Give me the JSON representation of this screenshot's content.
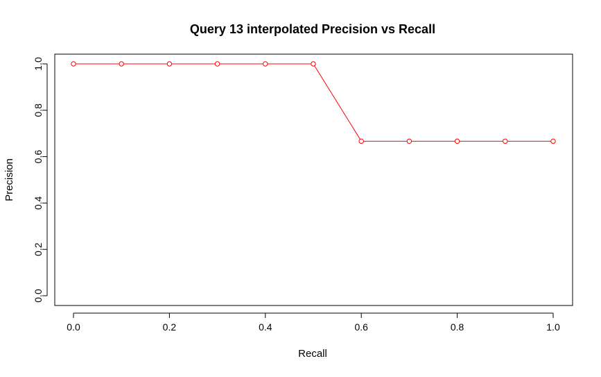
{
  "chart_data": {
    "type": "line",
    "title": "Query 13 interpolated Precision vs Recall",
    "xlabel": "Recall",
    "ylabel": "Precision",
    "x": [
      0.0,
      0.1,
      0.2,
      0.3,
      0.4,
      0.5,
      0.6,
      0.7,
      0.8,
      0.9,
      1.0
    ],
    "series": [
      {
        "values": [
          1.0,
          1.0,
          1.0,
          1.0,
          1.0,
          1.0,
          0.6667,
          0.6667,
          0.6667,
          0.6667,
          0.6667
        ],
        "color": "#ff0000",
        "marker": "open-circle"
      }
    ],
    "xlim": [
      0.0,
      1.0
    ],
    "ylim": [
      0.0,
      1.0
    ],
    "xticks": [
      "0.0",
      "0.2",
      "0.4",
      "0.6",
      "0.8",
      "1.0"
    ],
    "yticks": [
      "0.0",
      "0.2",
      "0.4",
      "0.6",
      "0.8",
      "1.0"
    ],
    "grid": false,
    "legend": "none"
  }
}
